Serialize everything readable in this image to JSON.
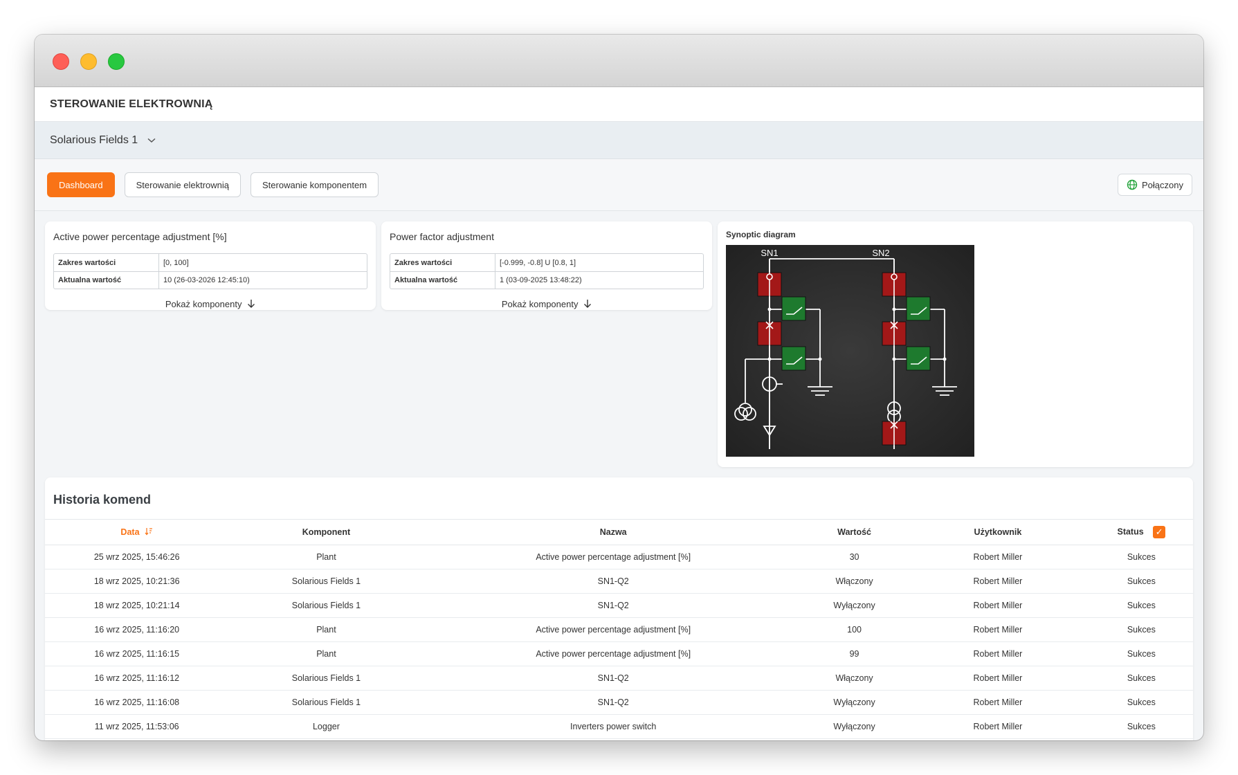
{
  "app": {
    "title": "STEROWANIE ELEKTROWNIĄ"
  },
  "plant_selector": {
    "value": "Solarious Fields 1"
  },
  "nav": {
    "tabs": [
      {
        "label": "Dashboard",
        "active": true
      },
      {
        "label": "Sterowanie elektrownią",
        "active": false
      },
      {
        "label": "Sterowanie komponentem",
        "active": false
      }
    ],
    "connection_status": "Połączony",
    "connection_icon": "globe-icon"
  },
  "cards": {
    "active_power": {
      "title": "Active power percentage adjustment [%]",
      "range_label": "Zakres wartości",
      "range_value": "[0, 100]",
      "current_label": "Aktualna wartość",
      "current_value": "10  (26-03-2026 12:45:10)",
      "show_link": "Pokaż komponenty"
    },
    "power_factor": {
      "title": "Power factor adjustment",
      "range_label": "Zakres wartości",
      "range_value": "[-0.999, -0.8] U [0.8, 1]",
      "current_label": "Aktualna wartość",
      "current_value": "1  (03-09-2025 13:48:22)",
      "show_link": "Pokaż komponenty"
    },
    "synoptic": {
      "title": "Synoptic diagram",
      "label_sn1": "SN1",
      "label_sn2": "SN2"
    }
  },
  "history": {
    "title": "Historia komend",
    "columns": [
      "Data",
      "Komponent",
      "Nazwa",
      "Wartość",
      "Użytkownik",
      "Status"
    ],
    "rows": [
      [
        "25 wrz 2025, 15:46:26",
        "Plant",
        "Active power percentage adjustment [%]",
        "30",
        "Robert Miller",
        "Sukces"
      ],
      [
        "18 wrz 2025, 10:21:36",
        "Solarious Fields 1",
        "SN1-Q2",
        "Włączony",
        "Robert Miller",
        "Sukces"
      ],
      [
        "18 wrz 2025, 10:21:14",
        "Solarious Fields 1",
        "SN1-Q2",
        "Wyłączony",
        "Robert Miller",
        "Sukces"
      ],
      [
        "16 wrz 2025, 11:16:20",
        "Plant",
        "Active power percentage adjustment [%]",
        "100",
        "Robert Miller",
        "Sukces"
      ],
      [
        "16 wrz 2025, 11:16:15",
        "Plant",
        "Active power percentage adjustment [%]",
        "99",
        "Robert Miller",
        "Sukces"
      ],
      [
        "16 wrz 2025, 11:16:12",
        "Solarious Fields 1",
        "SN1-Q2",
        "Włączony",
        "Robert Miller",
        "Sukces"
      ],
      [
        "16 wrz 2025, 11:16:08",
        "Solarious Fields 1",
        "SN1-Q2",
        "Wyłączony",
        "Robert Miller",
        "Sukces"
      ],
      [
        "11 wrz 2025, 11:53:06",
        "Logger",
        "Inverters power switch",
        "Wyłączony",
        "Robert Miller",
        "Sukces"
      ]
    ]
  },
  "colors": {
    "accent": "#f97316",
    "breaker_closed": "#a31818",
    "switch_open": "#1e7a2e"
  }
}
